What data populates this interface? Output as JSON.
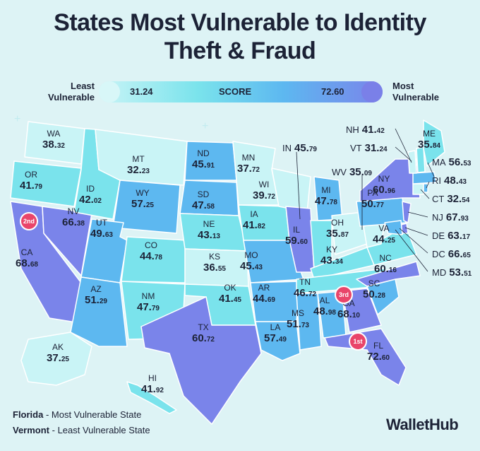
{
  "title_line1": "States Most Vulnerable to Identity",
  "title_line2": "Theft & Fraud",
  "legend": {
    "least_line1": "Least",
    "least_line2": "Vulnerable",
    "most_line1": "Most",
    "most_line2": "Vulnerable",
    "min": "31.24",
    "label": "SCORE",
    "max": "72.60"
  },
  "colors": {
    "lightest": "#c9f4f6",
    "light": "#7ae3ec",
    "mid": "#5db8f0",
    "dark": "#7a84ea",
    "badge": "#e9456a"
  },
  "states": [
    {
      "ab": "WA",
      "main": "38.",
      "dec": "32"
    },
    {
      "ab": "OR",
      "main": "41.",
      "dec": "79"
    },
    {
      "ab": "CA",
      "main": "68.",
      "dec": "68"
    },
    {
      "ab": "NV",
      "main": "66.",
      "dec": "38"
    },
    {
      "ab": "ID",
      "main": "42.",
      "dec": "02"
    },
    {
      "ab": "MT",
      "main": "32.",
      "dec": "23"
    },
    {
      "ab": "WY",
      "main": "57.",
      "dec": "25"
    },
    {
      "ab": "UT",
      "main": "49.",
      "dec": "63"
    },
    {
      "ab": "AZ",
      "main": "51.",
      "dec": "29"
    },
    {
      "ab": "CO",
      "main": "44.",
      "dec": "78"
    },
    {
      "ab": "NM",
      "main": "47.",
      "dec": "79"
    },
    {
      "ab": "ND",
      "main": "45.",
      "dec": "91"
    },
    {
      "ab": "SD",
      "main": "47.",
      "dec": "58"
    },
    {
      "ab": "NE",
      "main": "43.",
      "dec": "13"
    },
    {
      "ab": "KS",
      "main": "36.",
      "dec": "55"
    },
    {
      "ab": "OK",
      "main": "41.",
      "dec": "45"
    },
    {
      "ab": "TX",
      "main": "60.",
      "dec": "72"
    },
    {
      "ab": "MN",
      "main": "37.",
      "dec": "72"
    },
    {
      "ab": "IA",
      "main": "41.",
      "dec": "82"
    },
    {
      "ab": "MO",
      "main": "45.",
      "dec": "43"
    },
    {
      "ab": "AR",
      "main": "44.",
      "dec": "69"
    },
    {
      "ab": "LA",
      "main": "57.",
      "dec": "49"
    },
    {
      "ab": "WI",
      "main": "39.",
      "dec": "72"
    },
    {
      "ab": "IL",
      "main": "59.",
      "dec": "60"
    },
    {
      "ab": "MI",
      "main": "47.",
      "dec": "78"
    },
    {
      "ab": "IN",
      "main": "45.",
      "dec": "79"
    },
    {
      "ab": "OH",
      "main": "35.",
      "dec": "87"
    },
    {
      "ab": "KY",
      "main": "43.",
      "dec": "34"
    },
    {
      "ab": "TN",
      "main": "46.",
      "dec": "72"
    },
    {
      "ab": "MS",
      "main": "51.",
      "dec": "73"
    },
    {
      "ab": "AL",
      "main": "48.",
      "dec": "98"
    },
    {
      "ab": "GA",
      "main": "68.",
      "dec": "10"
    },
    {
      "ab": "FL",
      "main": "72.",
      "dec": "60"
    },
    {
      "ab": "SC",
      "main": "50.",
      "dec": "28"
    },
    {
      "ab": "NC",
      "main": "60.",
      "dec": "16"
    },
    {
      "ab": "VA",
      "main": "44.",
      "dec": "25"
    },
    {
      "ab": "WV",
      "main": "35.",
      "dec": "09"
    },
    {
      "ab": "PA",
      "main": "50.",
      "dec": "77"
    },
    {
      "ab": "NY",
      "main": "60.",
      "dec": "96"
    },
    {
      "ab": "ME",
      "main": "35.",
      "dec": "84"
    },
    {
      "ab": "AK",
      "main": "37.",
      "dec": "25"
    },
    {
      "ab": "HI",
      "main": "41.",
      "dec": "92"
    },
    {
      "ab": "NH",
      "main": "41.",
      "dec": "42"
    },
    {
      "ab": "VT",
      "main": "31.",
      "dec": "24"
    },
    {
      "ab": "MA",
      "main": "56.",
      "dec": "53"
    },
    {
      "ab": "RI",
      "main": "48.",
      "dec": "43"
    },
    {
      "ab": "CT",
      "main": "32.",
      "dec": "54"
    },
    {
      "ab": "NJ",
      "main": "67.",
      "dec": "93"
    },
    {
      "ab": "DE",
      "main": "63.",
      "dec": "17"
    },
    {
      "ab": "DC",
      "main": "66.",
      "dec": "65"
    },
    {
      "ab": "MD",
      "main": "53.",
      "dec": "51"
    }
  ],
  "badges": {
    "first": "1st",
    "second": "2nd",
    "third": "3rd"
  },
  "footer": {
    "line1_state": "Florida",
    "line1_text": " - Most Vulnerable State",
    "line2_state": "Vermont",
    "line2_text": " - Least Vulnerable State",
    "brand": "WalletHub"
  }
}
